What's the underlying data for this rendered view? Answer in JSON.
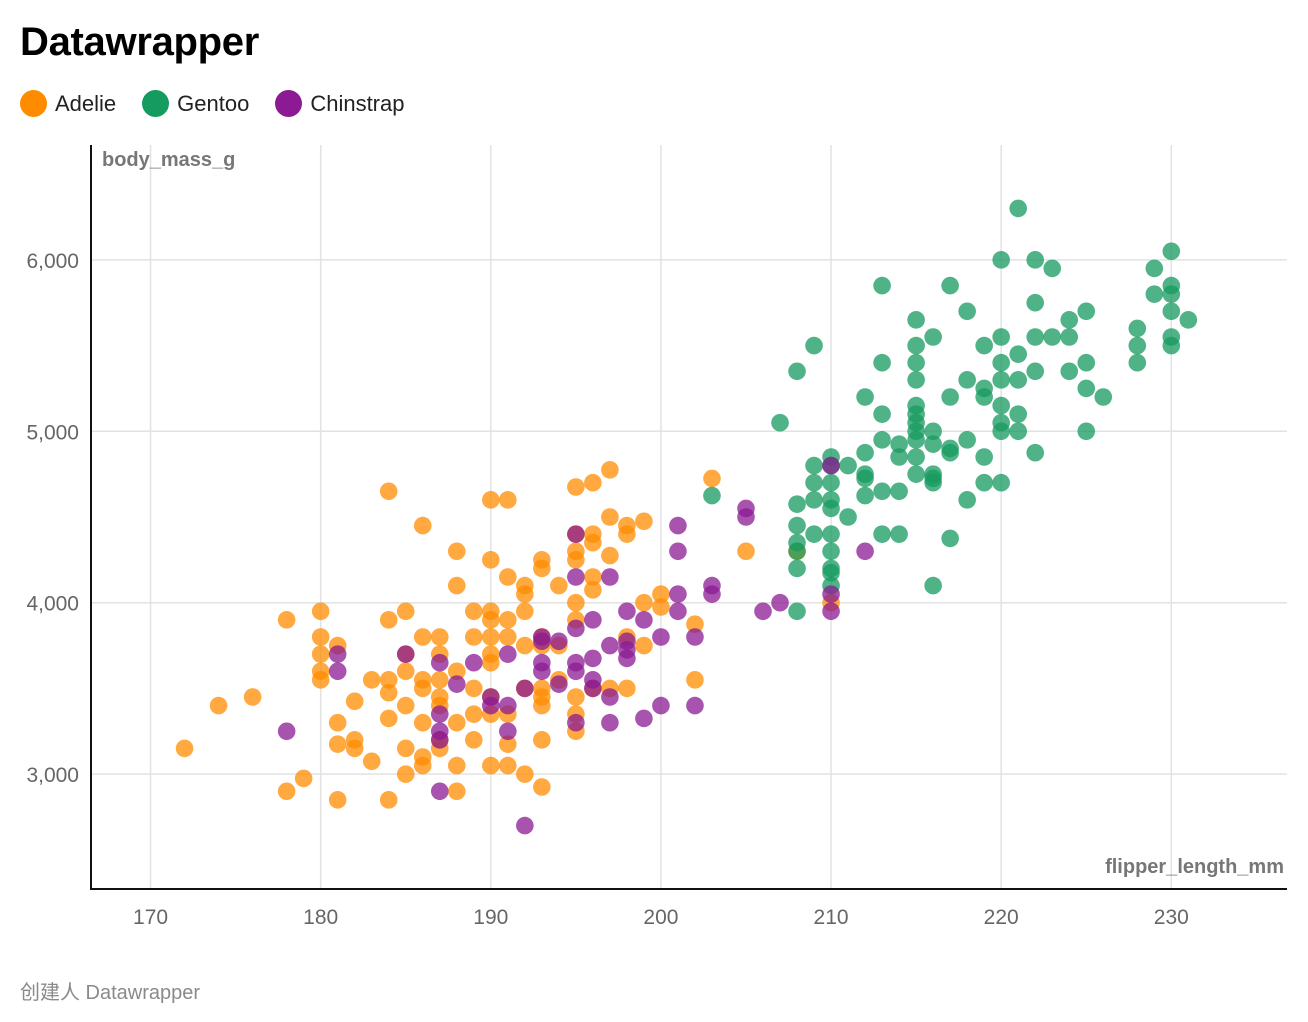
{
  "title": "Datawrapper",
  "footer": "创建人 Datawrapper",
  "colors": {
    "Adelie": "#ff8c00",
    "Gentoo": "#159a5f",
    "Chinstrap": "#8b1a93"
  },
  "chart_data": {
    "type": "scatter",
    "title": "Datawrapper",
    "xlabel": "flipper_length_mm",
    "ylabel": "body_mass_g",
    "xlim": [
      166.5,
      236.8
    ],
    "ylim": [
      2330,
      6670
    ],
    "x_ticks": [
      170,
      180,
      190,
      200,
      210,
      220,
      230
    ],
    "x_tick_labels": [
      "170",
      "180",
      "190",
      "200",
      "210",
      "220",
      "230"
    ],
    "y_ticks": [
      3000,
      4000,
      5000,
      6000
    ],
    "y_tick_labels": [
      "3,000",
      "4,000",
      "5,000",
      "6,000"
    ],
    "grid": true,
    "legend_position": "top-left",
    "series": [
      {
        "name": "Adelie",
        "color": "#ff8c00",
        "points": [
          [
            172,
            3150
          ],
          [
            174,
            3400
          ],
          [
            176,
            3450
          ],
          [
            178,
            3900
          ],
          [
            178,
            2900
          ],
          [
            179,
            2975
          ],
          [
            180,
            3950
          ],
          [
            180,
            3800
          ],
          [
            180,
            3700
          ],
          [
            180,
            3600
          ],
          [
            180,
            3550
          ],
          [
            181,
            3750
          ],
          [
            181,
            3300
          ],
          [
            181,
            3175
          ],
          [
            181,
            2850
          ],
          [
            182,
            3200
          ],
          [
            182,
            3150
          ],
          [
            182,
            3425
          ],
          [
            183,
            3550
          ],
          [
            183,
            3075
          ],
          [
            184,
            4650
          ],
          [
            184,
            3900
          ],
          [
            184,
            3550
          ],
          [
            184,
            3475
          ],
          [
            184,
            3325
          ],
          [
            184,
            2850
          ],
          [
            185,
            3950
          ],
          [
            185,
            3700
          ],
          [
            185,
            3600
          ],
          [
            185,
            3400
          ],
          [
            185,
            3150
          ],
          [
            185,
            3000
          ],
          [
            186,
            4450
          ],
          [
            186,
            3800
          ],
          [
            186,
            3550
          ],
          [
            186,
            3500
          ],
          [
            186,
            3300
          ],
          [
            186,
            3100
          ],
          [
            186,
            3050
          ],
          [
            187,
            3800
          ],
          [
            187,
            3700
          ],
          [
            187,
            3550
          ],
          [
            187,
            3450
          ],
          [
            187,
            3400
          ],
          [
            187,
            3200
          ],
          [
            187,
            3150
          ],
          [
            188,
            4300
          ],
          [
            188,
            4100
          ],
          [
            188,
            3600
          ],
          [
            188,
            3300
          ],
          [
            188,
            3050
          ],
          [
            188,
            2900
          ],
          [
            189,
            3950
          ],
          [
            189,
            3800
          ],
          [
            189,
            3500
          ],
          [
            189,
            3350
          ],
          [
            189,
            3200
          ],
          [
            190,
            4600
          ],
          [
            190,
            4250
          ],
          [
            190,
            3950
          ],
          [
            190,
            3900
          ],
          [
            190,
            3800
          ],
          [
            190,
            3700
          ],
          [
            190,
            3650
          ],
          [
            190,
            3450
          ],
          [
            190,
            3350
          ],
          [
            190,
            3050
          ],
          [
            191,
            4600
          ],
          [
            191,
            4150
          ],
          [
            191,
            3900
          ],
          [
            191,
            3800
          ],
          [
            191,
            3350
          ],
          [
            191,
            3175
          ],
          [
            191,
            3050
          ],
          [
            192,
            4100
          ],
          [
            192,
            4050
          ],
          [
            192,
            3950
          ],
          [
            192,
            3750
          ],
          [
            192,
            3500
          ],
          [
            192,
            3000
          ],
          [
            193,
            4250
          ],
          [
            193,
            4200
          ],
          [
            193,
            3800
          ],
          [
            193,
            3750
          ],
          [
            193,
            3500
          ],
          [
            193,
            3450
          ],
          [
            193,
            3400
          ],
          [
            193,
            3200
          ],
          [
            193,
            2925
          ],
          [
            194,
            4100
          ],
          [
            194,
            3750
          ],
          [
            194,
            3550
          ],
          [
            195,
            4675
          ],
          [
            195,
            4400
          ],
          [
            195,
            4300
          ],
          [
            195,
            4250
          ],
          [
            195,
            4000
          ],
          [
            195,
            3900
          ],
          [
            195,
            3450
          ],
          [
            195,
            3350
          ],
          [
            195,
            3250
          ],
          [
            196,
            4700
          ],
          [
            196,
            4400
          ],
          [
            196,
            4350
          ],
          [
            196,
            4150
          ],
          [
            196,
            4075
          ],
          [
            196,
            3500
          ],
          [
            197,
            4775
          ],
          [
            197,
            4500
          ],
          [
            197,
            4275
          ],
          [
            197,
            3500
          ],
          [
            198,
            4450
          ],
          [
            198,
            4400
          ],
          [
            198,
            3800
          ],
          [
            198,
            3500
          ],
          [
            199,
            4475
          ],
          [
            199,
            4000
          ],
          [
            199,
            3750
          ],
          [
            200,
            4050
          ],
          [
            200,
            3975
          ],
          [
            202,
            3875
          ],
          [
            202,
            3550
          ],
          [
            203,
            4725
          ],
          [
            205,
            4300
          ],
          [
            210,
            4000
          ],
          [
            208,
            4300
          ]
        ]
      },
      {
        "name": "Gentoo",
        "color": "#159a5f",
        "points": [
          [
            203,
            4625
          ],
          [
            207,
            5050
          ],
          [
            208,
            5350
          ],
          [
            208,
            4575
          ],
          [
            208,
            4450
          ],
          [
            208,
            4350
          ],
          [
            208,
            4300
          ],
          [
            208,
            4200
          ],
          [
            208,
            3950
          ],
          [
            209,
            5500
          ],
          [
            209,
            4800
          ],
          [
            209,
            4700
          ],
          [
            209,
            4600
          ],
          [
            209,
            4400
          ],
          [
            210,
            4850
          ],
          [
            210,
            4800
          ],
          [
            210,
            4700
          ],
          [
            210,
            4600
          ],
          [
            210,
            4550
          ],
          [
            210,
            4400
          ],
          [
            210,
            4300
          ],
          [
            210,
            4200
          ],
          [
            210,
            4175
          ],
          [
            210,
            4100
          ],
          [
            211,
            4800
          ],
          [
            211,
            4500
          ],
          [
            212,
            5200
          ],
          [
            212,
            4875
          ],
          [
            212,
            4750
          ],
          [
            212,
            4725
          ],
          [
            212,
            4625
          ],
          [
            213,
            5850
          ],
          [
            213,
            5400
          ],
          [
            213,
            5100
          ],
          [
            213,
            4950
          ],
          [
            213,
            4650
          ],
          [
            213,
            4400
          ],
          [
            214,
            4925
          ],
          [
            214,
            4850
          ],
          [
            214,
            4650
          ],
          [
            214,
            4400
          ],
          [
            215,
            5650
          ],
          [
            215,
            5500
          ],
          [
            215,
            5400
          ],
          [
            215,
            5300
          ],
          [
            215,
            5150
          ],
          [
            215,
            5100
          ],
          [
            215,
            5050
          ],
          [
            215,
            5000
          ],
          [
            215,
            4950
          ],
          [
            215,
            4850
          ],
          [
            215,
            4750
          ],
          [
            216,
            5550
          ],
          [
            216,
            5000
          ],
          [
            216,
            4925
          ],
          [
            216,
            4750
          ],
          [
            216,
            4725
          ],
          [
            216,
            4700
          ],
          [
            216,
            4100
          ],
          [
            217,
            5850
          ],
          [
            217,
            5200
          ],
          [
            217,
            4900
          ],
          [
            217,
            4875
          ],
          [
            217,
            4375
          ],
          [
            218,
            5700
          ],
          [
            218,
            5300
          ],
          [
            218,
            4950
          ],
          [
            218,
            4600
          ],
          [
            219,
            5500
          ],
          [
            219,
            5250
          ],
          [
            219,
            5200
          ],
          [
            219,
            4850
          ],
          [
            219,
            4700
          ],
          [
            220,
            6000
          ],
          [
            220,
            5550
          ],
          [
            220,
            5400
          ],
          [
            220,
            5300
          ],
          [
            220,
            5150
          ],
          [
            220,
            5050
          ],
          [
            220,
            5000
          ],
          [
            220,
            4700
          ],
          [
            221,
            6300
          ],
          [
            221,
            5450
          ],
          [
            221,
            5300
          ],
          [
            221,
            5100
          ],
          [
            221,
            5000
          ],
          [
            222,
            6000
          ],
          [
            222,
            5750
          ],
          [
            222,
            5550
          ],
          [
            222,
            5350
          ],
          [
            222,
            4875
          ],
          [
            223,
            5950
          ],
          [
            223,
            5550
          ],
          [
            224,
            5650
          ],
          [
            224,
            5550
          ],
          [
            224,
            5350
          ],
          [
            225,
            5700
          ],
          [
            225,
            5400
          ],
          [
            225,
            5250
          ],
          [
            225,
            5000
          ],
          [
            226,
            5200
          ],
          [
            228,
            5600
          ],
          [
            228,
            5500
          ],
          [
            228,
            5400
          ],
          [
            229,
            5950
          ],
          [
            229,
            5800
          ],
          [
            230,
            6050
          ],
          [
            230,
            5850
          ],
          [
            230,
            5800
          ],
          [
            230,
            5700
          ],
          [
            230,
            5550
          ],
          [
            230,
            5500
          ],
          [
            231,
            5650
          ]
        ]
      },
      {
        "name": "Chinstrap",
        "color": "#8b1a93",
        "points": [
          [
            178,
            3250
          ],
          [
            181,
            3700
          ],
          [
            181,
            3600
          ],
          [
            185,
            3700
          ],
          [
            187,
            3650
          ],
          [
            187,
            3350
          ],
          [
            187,
            3250
          ],
          [
            187,
            3200
          ],
          [
            187,
            2900
          ],
          [
            188,
            3525
          ],
          [
            189,
            3650
          ],
          [
            190,
            3450
          ],
          [
            190,
            3400
          ],
          [
            191,
            3700
          ],
          [
            191,
            3400
          ],
          [
            191,
            3250
          ],
          [
            192,
            3500
          ],
          [
            192,
            2700
          ],
          [
            193,
            3800
          ],
          [
            193,
            3775
          ],
          [
            193,
            3650
          ],
          [
            193,
            3600
          ],
          [
            194,
            3775
          ],
          [
            194,
            3525
          ],
          [
            195,
            4400
          ],
          [
            195,
            4150
          ],
          [
            195,
            3850
          ],
          [
            195,
            3650
          ],
          [
            195,
            3600
          ],
          [
            195,
            3300
          ],
          [
            196,
            3900
          ],
          [
            196,
            3675
          ],
          [
            196,
            3550
          ],
          [
            196,
            3500
          ],
          [
            197,
            4150
          ],
          [
            197,
            3750
          ],
          [
            197,
            3450
          ],
          [
            197,
            3300
          ],
          [
            198,
            3950
          ],
          [
            198,
            3775
          ],
          [
            198,
            3725
          ],
          [
            198,
            3675
          ],
          [
            199,
            3900
          ],
          [
            199,
            3325
          ],
          [
            200,
            3800
          ],
          [
            200,
            3400
          ],
          [
            201,
            4450
          ],
          [
            201,
            4300
          ],
          [
            201,
            4050
          ],
          [
            201,
            3950
          ],
          [
            202,
            3800
          ],
          [
            202,
            3400
          ],
          [
            203,
            4100
          ],
          [
            203,
            4050
          ],
          [
            205,
            4550
          ],
          [
            205,
            4500
          ],
          [
            206,
            3950
          ],
          [
            207,
            4000
          ],
          [
            210,
            4800
          ],
          [
            210,
            4050
          ],
          [
            210,
            3950
          ],
          [
            212,
            4300
          ]
        ]
      }
    ]
  }
}
